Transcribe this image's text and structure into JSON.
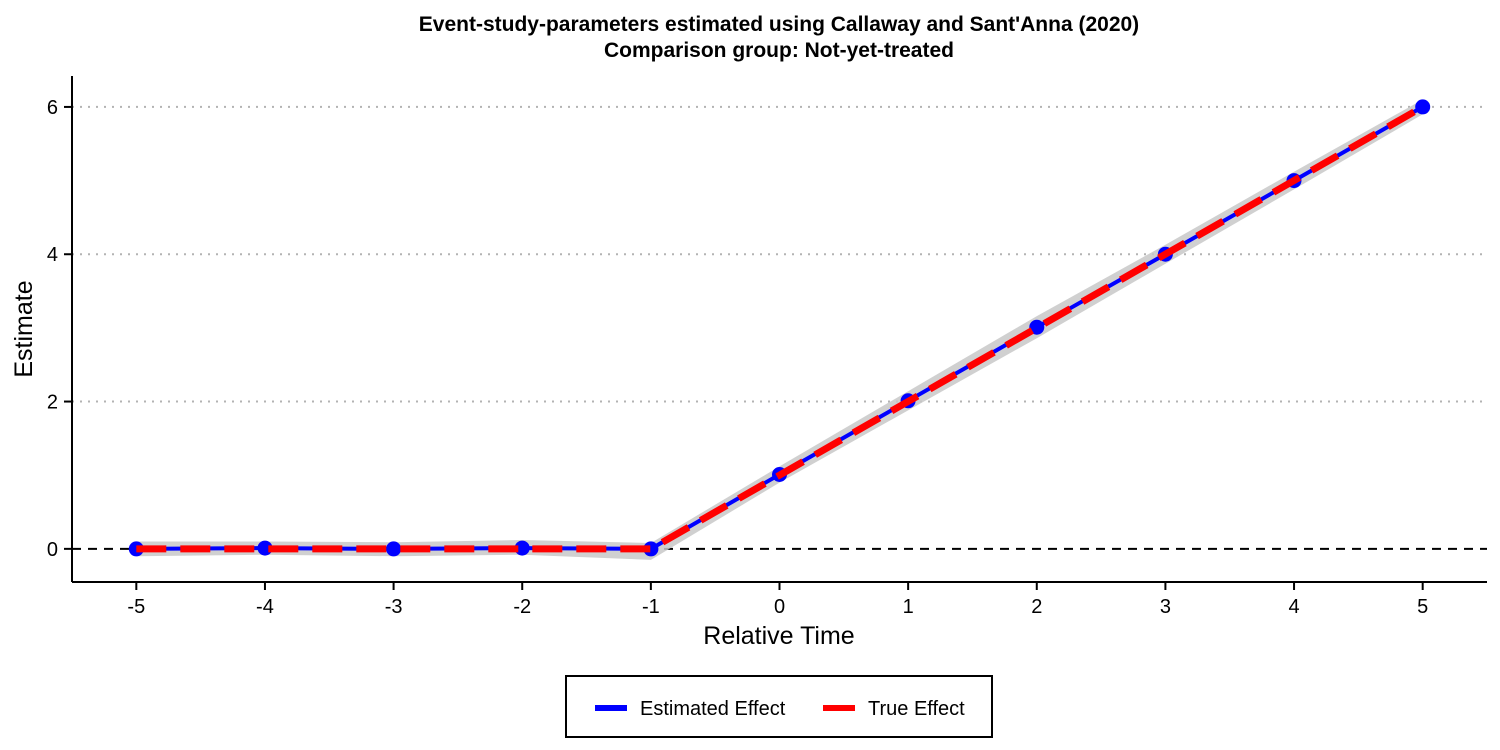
{
  "chart_data": {
    "type": "line",
    "title": "Event-study-parameters estimated using Callaway and Sant'Anna (2020)",
    "subtitle": "Comparison group: Not-yet-treated",
    "xlabel": "Relative Time",
    "ylabel": "Estimate",
    "x": [
      -5,
      -4,
      -3,
      -2,
      -1,
      0,
      1,
      2,
      3,
      4,
      5
    ],
    "x_ticks": [
      "-5",
      "-4",
      "-3",
      "-2",
      "-1",
      "0",
      "1",
      "2",
      "3",
      "4",
      "5"
    ],
    "y_ticks": [
      "0",
      "2",
      "4",
      "6"
    ],
    "xlim": [
      -5.5,
      5.5
    ],
    "ylim": [
      -0.45,
      6.42
    ],
    "grid": "horizontal dotted at y ticks",
    "reference_line": {
      "y": 0,
      "style": "dashed"
    },
    "legend_position": "bottom",
    "series": [
      {
        "name": "Estimated Effect",
        "color": "#0000ff",
        "style": "solid-with-points",
        "values": [
          0.0,
          0.01,
          0.0,
          0.01,
          0.0,
          1.01,
          2.01,
          3.01,
          4.0,
          5.0,
          6.0
        ],
        "ci_lower": [
          -0.1,
          -0.08,
          -0.1,
          -0.08,
          -0.15,
          0.9,
          1.88,
          2.86,
          3.87,
          4.88,
          5.9
        ],
        "ci_upper": [
          0.1,
          0.1,
          0.09,
          0.12,
          0.08,
          1.12,
          2.14,
          3.16,
          4.13,
          5.12,
          6.1
        ]
      },
      {
        "name": "True Effect",
        "color": "#ff0000",
        "style": "dashed",
        "values": [
          0,
          0,
          0,
          0,
          0,
          1,
          2,
          3,
          4,
          5,
          6
        ]
      }
    ],
    "ci_color": "#c8c8c8"
  }
}
